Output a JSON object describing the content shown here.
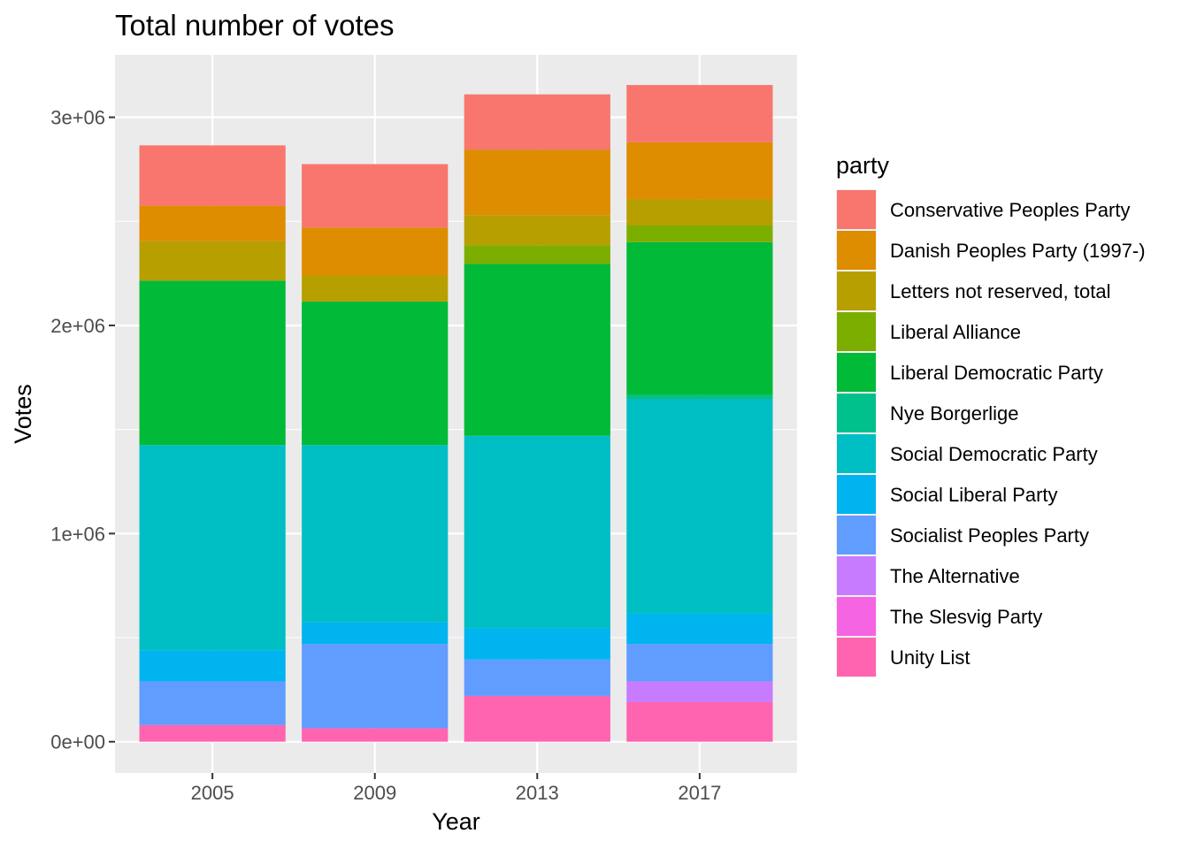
{
  "chart_data": {
    "type": "bar",
    "stacked": true,
    "title": "Total number of votes",
    "xlabel": "Year",
    "ylabel": "Votes",
    "categories": [
      "2005",
      "2009",
      "2013",
      "2017"
    ],
    "ylim": [
      -150000,
      3300000
    ],
    "yticks": [
      0,
      1000000,
      2000000,
      3000000
    ],
    "ytick_labels": [
      "0e+00",
      "1e+06",
      "2e+06",
      "3e+06"
    ],
    "grid": true,
    "legend": {
      "title": "party",
      "position": "right"
    },
    "series": [
      {
        "name": "Conservative Peoples Party",
        "color": "#F8766D",
        "values": [
          290000,
          305000,
          265000,
          275000
        ]
      },
      {
        "name": "Danish Peoples Party (1997-)",
        "color": "#DE8C00",
        "values": [
          170000,
          230000,
          315000,
          275000
        ]
      },
      {
        "name": "Letters not reserved, total",
        "color": "#B79F00",
        "values": [
          190000,
          125000,
          145000,
          125000
        ]
      },
      {
        "name": "Liberal Alliance",
        "color": "#7CAE00",
        "values": [
          0,
          0,
          90000,
          80000
        ]
      },
      {
        "name": "Liberal Democratic Party",
        "color": "#00BA38",
        "values": [
          790000,
          690000,
          825000,
          735000
        ]
      },
      {
        "name": "Nye Borgerlige",
        "color": "#00C08B",
        "values": [
          0,
          0,
          0,
          20000
        ]
      },
      {
        "name": "Social Democratic Party",
        "color": "#00BFC4",
        "values": [
          985000,
          850000,
          925000,
          1030000
        ]
      },
      {
        "name": "Social Liberal Party",
        "color": "#00B4F0",
        "values": [
          150000,
          105000,
          150000,
          145000
        ]
      },
      {
        "name": "Socialist Peoples Party",
        "color": "#619CFF",
        "values": [
          210000,
          405000,
          175000,
          180000
        ]
      },
      {
        "name": "The Alternative",
        "color": "#C77CFF",
        "values": [
          0,
          0,
          0,
          100000
        ]
      },
      {
        "name": "The Slesvig Party",
        "color": "#F564E3",
        "values": [
          0,
          0,
          0,
          0
        ]
      },
      {
        "name": "Unity List",
        "color": "#FF64B0",
        "values": [
          80000,
          65000,
          220000,
          190000
        ]
      }
    ]
  }
}
